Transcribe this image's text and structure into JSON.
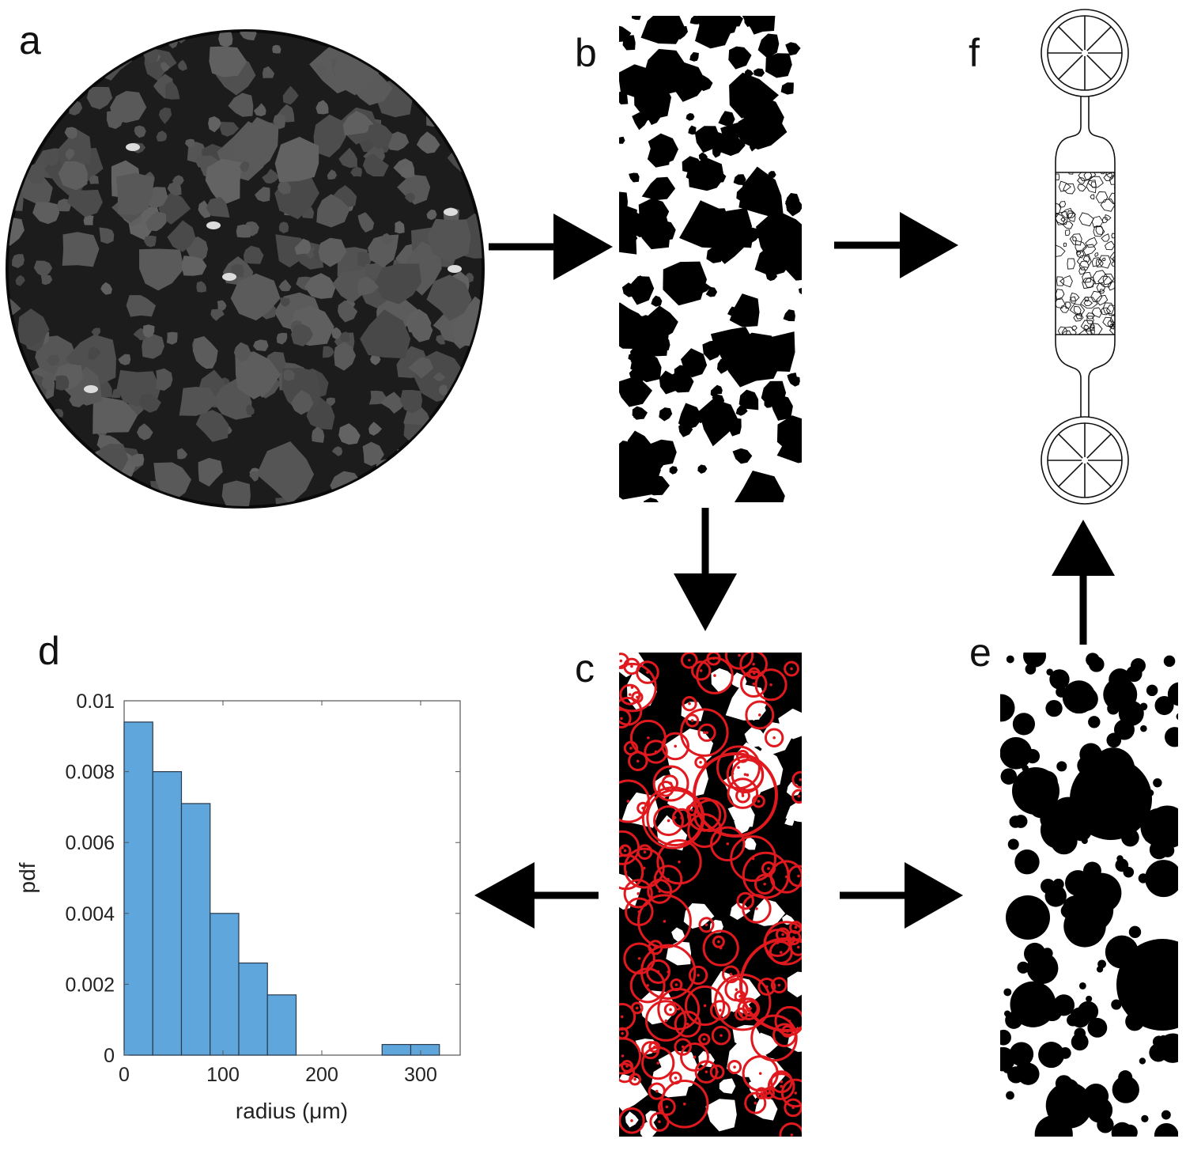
{
  "panels": {
    "a": {
      "label": "a"
    },
    "b": {
      "label": "b"
    },
    "c": {
      "label": "c"
    },
    "d": {
      "label": "d"
    },
    "e": {
      "label": "e"
    },
    "f": {
      "label": "f"
    }
  },
  "colors": {
    "histogram_fill": "#5fa6dd",
    "histogram_edge": "#2a3a4a",
    "circle_fit": "#e0191e",
    "grain_black": "#000000",
    "ct_background": "#202020",
    "ct_grain": "#555555"
  },
  "chart_data": {
    "type": "bar",
    "xlabel": "radius (μm)",
    "ylabel": "pdf",
    "xlim": [
      0,
      340
    ],
    "ylim": [
      0,
      0.01
    ],
    "xticks": [
      "0",
      "100",
      "200",
      "300"
    ],
    "yticks": [
      "0",
      "0.002",
      "0.004",
      "0.006",
      "0.008",
      "0.01"
    ],
    "bin_width": 29,
    "bins": [
      {
        "start": 0,
        "value": 0.0094
      },
      {
        "start": 29,
        "value": 0.008
      },
      {
        "start": 58,
        "value": 0.0071
      },
      {
        "start": 87,
        "value": 0.004
      },
      {
        "start": 116,
        "value": 0.0026
      },
      {
        "start": 145,
        "value": 0.0017
      },
      {
        "start": 174,
        "value": 0
      },
      {
        "start": 203,
        "value": 0
      },
      {
        "start": 232,
        "value": 0
      },
      {
        "start": 261,
        "value": 0.0003
      },
      {
        "start": 290,
        "value": 0.0003
      }
    ]
  }
}
